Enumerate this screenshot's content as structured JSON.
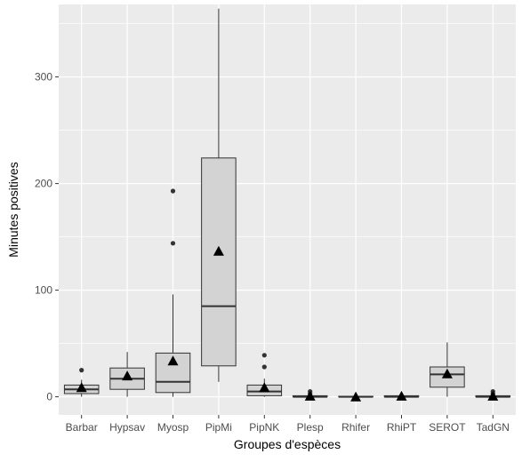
{
  "chart_data": {
    "type": "box",
    "xlabel": "Groupes d'espèces",
    "ylabel": "Minutes positives",
    "yticks": [
      0,
      100,
      200,
      300
    ],
    "ylim": [
      -17,
      368
    ],
    "grid": true,
    "colors": {
      "panel": "#ebebeb",
      "grid": "#ffffff",
      "box_fill": "#d3d3d3",
      "stroke": "#333333",
      "mean_marker": "#000000"
    },
    "categories": [
      "Barbar",
      "Hypsav",
      "Myosp",
      "PipMi",
      "PipNK",
      "Plesp",
      "Rhifer",
      "RhiPT",
      "SEROT",
      "TadGN"
    ],
    "series": [
      {
        "q1": 3,
        "median": 7,
        "q3": 11,
        "whisker_low": 0,
        "whisker_high": 16,
        "mean": 9,
        "outliers": [
          25
        ]
      },
      {
        "q1": 7,
        "median": 17,
        "q3": 27,
        "whisker_low": 0,
        "whisker_high": 42,
        "mean": 20,
        "outliers": []
      },
      {
        "q1": 4,
        "median": 14,
        "q3": 41,
        "whisker_low": 0,
        "whisker_high": 96,
        "mean": 34,
        "outliers": [
          144,
          193
        ]
      },
      {
        "q1": 29,
        "median": 85,
        "q3": 224,
        "whisker_low": 14,
        "whisker_high": 364,
        "mean": 137,
        "outliers": []
      },
      {
        "q1": 1,
        "median": 5,
        "q3": 11,
        "whisker_low": 0,
        "whisker_high": 17,
        "mean": 9,
        "outliers": [
          28,
          39
        ]
      },
      {
        "q1": 0,
        "median": 0,
        "q3": 1,
        "whisker_low": 0,
        "whisker_high": 2,
        "mean": 1,
        "outliers": [
          3,
          5
        ]
      },
      {
        "q1": 0,
        "median": 0,
        "q3": 0.5,
        "whisker_low": 0,
        "whisker_high": 1,
        "mean": 0.3,
        "outliers": []
      },
      {
        "q1": 0,
        "median": 0,
        "q3": 1,
        "whisker_low": 0,
        "whisker_high": 2,
        "mean": 1,
        "outliers": []
      },
      {
        "q1": 9,
        "median": 21,
        "q3": 28,
        "whisker_low": 0,
        "whisker_high": 51,
        "mean": 22,
        "outliers": []
      },
      {
        "q1": 0,
        "median": 0,
        "q3": 1,
        "whisker_low": 0,
        "whisker_high": 2,
        "mean": 1,
        "outliers": [
          3,
          5
        ]
      }
    ]
  }
}
